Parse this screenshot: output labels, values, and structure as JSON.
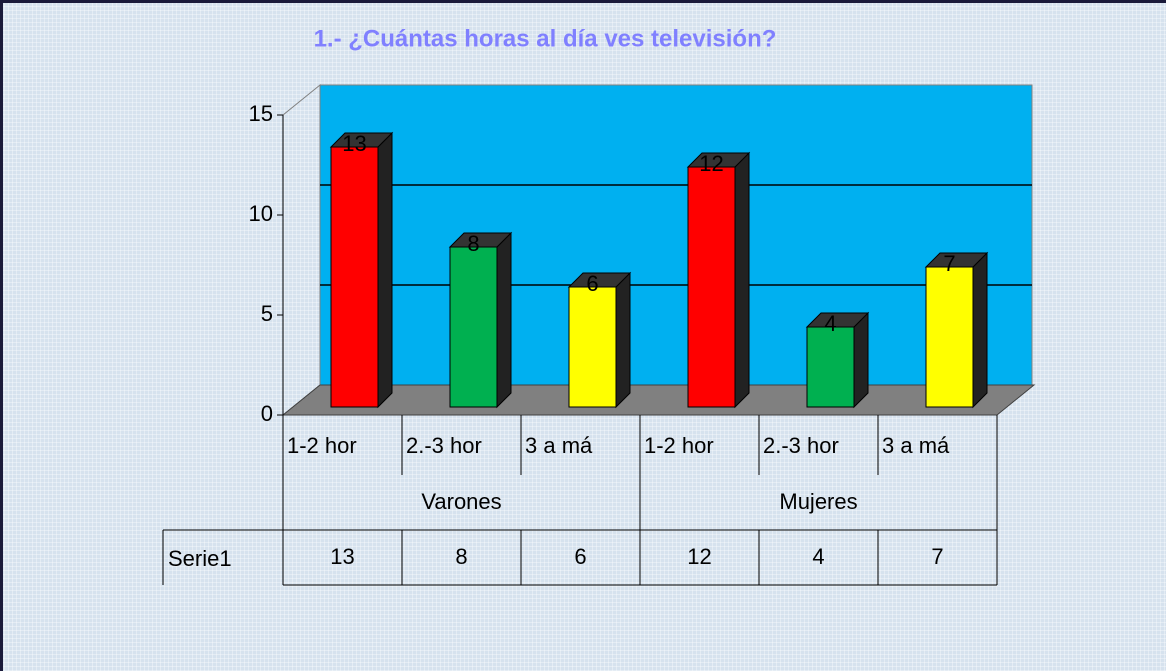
{
  "chart_data": {
    "type": "bar3d",
    "title": "1.- ¿Cuántas horas al día ves televisión?",
    "categories": [
      "1-2 hor",
      "2.-3 hor",
      "3 a má",
      "1-2 hor",
      "2.-3 hor",
      "3 a má"
    ],
    "groups": [
      "Varones",
      "Mujeres"
    ],
    "series": [
      {
        "name": "Serie1",
        "colors": [
          "#ff0000",
          "#00b050",
          "#ffff00",
          "#ff0000",
          "#00b050",
          "#ffff00"
        ],
        "values": [
          13,
          8,
          6,
          12,
          4,
          7
        ]
      }
    ],
    "ylim": [
      0,
      15
    ],
    "yticks": [
      0,
      5,
      10,
      15
    ],
    "grid": true,
    "data_table": true
  }
}
